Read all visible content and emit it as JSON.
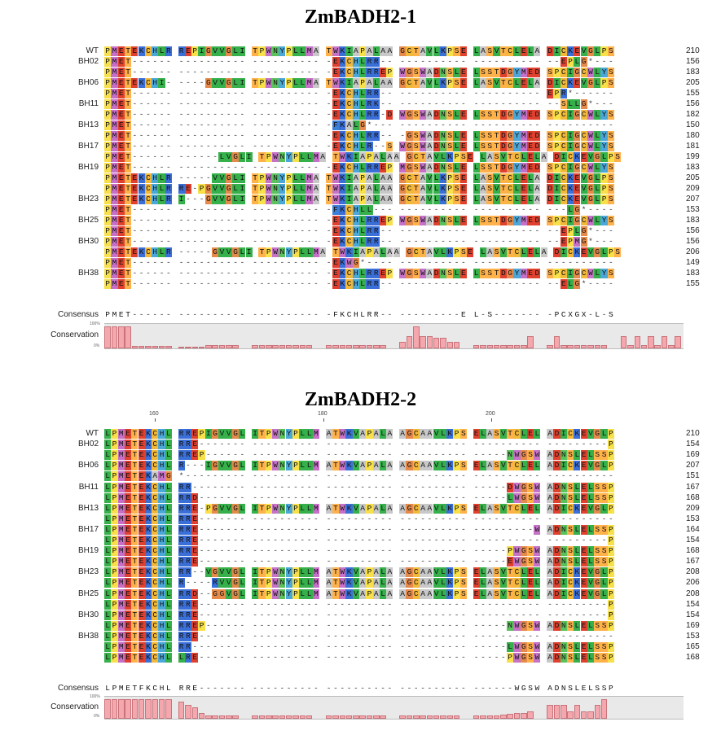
{
  "colors": {
    "A": "#c8c8c8",
    "R": "#3b6fd8",
    "N": "#5bc25b",
    "D": "#e0402e",
    "C": "#f2b83a",
    "Q": "#5bc25b",
    "E": "#e0402e",
    "G": "#e58a4a",
    "H": "#4aa7d8",
    "I": "#35b04a",
    "L": "#35b04a",
    "K": "#3b6fd8",
    "M": "#c56fc7",
    "F": "#3b7fd8",
    "P": "#f7e04a",
    "S": "#ffb14a",
    "T": "#ffb14a",
    "W": "#c572c7",
    "Y": "#4aa7d8",
    "V": "#35b04a",
    "X": "#ffffff",
    "*": "#ffffff",
    "-": "#ffffff"
  },
  "panels": [
    {
      "title": "ZmBADH2-1",
      "ruler": [],
      "rows": [
        {
          "label": "WT",
          "seq": "PMETEKCHLR REPIGVVGLI TPWNYPLLMA TWKIAPALAA GCTAVLKPSE LASVTCLELA DICKEVGLPS",
          "count": "210"
        },
        {
          "label": "BH02",
          "seq": "PMET------ ---------- ---------- -EKCHLRR-- ---------- ---------- --EPLG*---",
          "count": "156"
        },
        {
          "label": "",
          "seq": "PMET------ ---------- ---------- -EKCHLRREP WGSWADNSLE LSSTDGYMED SPCIGCWLYS",
          "count": "183"
        },
        {
          "label": "BH06",
          "seq": "PMETEKCHI- ----GVVGLI TPWNYPLLMA TWKIAPALAA GCTAVLKPSE LASVTCLELA DICKEVGLPS",
          "count": "205"
        },
        {
          "label": "",
          "seq": "PMET------ ---------- ---------- -EKCHLRR-- ---------- ---------- EPR*------",
          "count": "155"
        },
        {
          "label": "BH11",
          "seq": "PMET------ ---------- ---------- -EKCHLRK-- ---------- ---------- --SLLG*---",
          "count": "156"
        },
        {
          "label": "",
          "seq": "PMET------ ---------- ---------- -EKCHLRR-D WGSWADNSLE LSSTDGYMED SPCIGCWLYS",
          "count": "182"
        },
        {
          "label": "BH13",
          "seq": "PMET------ ---------- ---------- -FKALG*--- ---------- ---------- ----------",
          "count": "150"
        },
        {
          "label": "",
          "seq": "PMET------ ---------- ---------- -EKCHLRR-- -GSWADNSLE LSSTDGYMED SPCIGCWLYS",
          "count": "180"
        },
        {
          "label": "BH17",
          "seq": "PMET------ ---------- ---------- -EKCHLR--S WGSWADNSLE LSSTDGYMED SPCIGCWLYS",
          "count": "181"
        },
        {
          "label": "",
          "seq": "PMET------ ------LVGLI TPWNYPLLMA TWKIAPALAA GCTAVLKPSE LASVTCLELA DICKEVGLPS",
          "count": "199"
        },
        {
          "label": "BH19",
          "seq": "PMET------ ---------- ---------- -EKCHLRREP MGSWADNSLE LSSTDGYMED SPCIGCWLYS",
          "count": "183"
        },
        {
          "label": "",
          "seq": "PMETEKCHLR -----VVGLI TPWNYPLLMA TWKIAPALAA GCTAVLKPSE LASVTCLELA DICKEVGLPS",
          "count": "205"
        },
        {
          "label": "",
          "seq": "PMETEKCHLR RE-PGVVGLI TPWNYPLLMA TWKIAPALAA GCTAVLKPSE LASVTCLELA DICKEVGLPS",
          "count": "209"
        },
        {
          "label": "BH23",
          "seq": "PMETEKCHLR I---GVVGLI TPWNYPLLMA TWKIAPALAA GCTAVLKPSE LASVTCLELA DICKEVGLPS",
          "count": "207"
        },
        {
          "label": "",
          "seq": "PMET------ ---------- ---------- -FKCHLL--- ---------- ---------- ---LG*----",
          "count": "153"
        },
        {
          "label": "BH25",
          "seq": "PMET------ ---------- ---------- -EKCHLRREP WGSWADNSLE LSSTDGYMED SPCIGCWLYS",
          "count": "183"
        },
        {
          "label": "",
          "seq": "PMET------ ---------- ---------- -EKCHLRR-- ---------- ---------- --EPLG*---",
          "count": "156"
        },
        {
          "label": "BH30",
          "seq": "PMET------ ---------- ---------- -EKCHLRR-- ---------- ---------- --EPMG*---",
          "count": "156"
        },
        {
          "label": "",
          "seq": "PMETEKCHLR -----GVVGLI TPWNYPLLMA TWKIAPALAA GCTAVLKPSE LASVTCLELA DICKEVGLPS",
          "count": "206"
        },
        {
          "label": "",
          "seq": "PMET------ ---------- ---------- -EKWG*---- ---------- ---------- ----------",
          "count": "149"
        },
        {
          "label": "BH38",
          "seq": "PMET------ ---------- ---------- -EKCHLRREP WGSWADNSLE LSSTDGYMED SPCIGCWLYS",
          "count": "183"
        },
        {
          "label": "",
          "seq": "PMET------ ---------- ---------- -EKCHLRR-- ---------- ---------- --ELG*----",
          "count": "155"
        }
      ],
      "consensus_label": "Consensus",
      "consensus": "PMET------ ---------- ---------- -FKCHLRR-- ---------E L-S------- -PCXGX-L-S",
      "conservation_label": "Conservation",
      "pct_top": "100%",
      "pct_bottom": "0%",
      "conservation": [
        0.95,
        0.95,
        0.95,
        0.95,
        0.12,
        0.12,
        0.12,
        0.12,
        0.12,
        0.12,
        0,
        0.06,
        0.06,
        0.06,
        0.04,
        0.15,
        0.15,
        0.15,
        0.15,
        0.15,
        0,
        0.15,
        0.15,
        0.15,
        0.15,
        0.15,
        0.15,
        0.15,
        0.15,
        0.15,
        0.15,
        0,
        0.15,
        0.15,
        0.15,
        0.15,
        0.15,
        0.15,
        0.15,
        0.15,
        0.15,
        0.15,
        0,
        0.15,
        0.3,
        0.55,
        0.95,
        0.55,
        0.55,
        0.45,
        0.45,
        0.3,
        0.3,
        0,
        0.15,
        0.15,
        0.15,
        0.15,
        0.15,
        0.15,
        0.15,
        0.15,
        0.15,
        0.55,
        0,
        0.55,
        0.15,
        0.55,
        0.15,
        0.15,
        0.15,
        0.15,
        0.15,
        0.15,
        0.15,
        0,
        0.15,
        0.55,
        0.15,
        0.55,
        0.15,
        0.55,
        0.15,
        0.55,
        0.15,
        0.55
      ]
    },
    {
      "title": "ZmBADH2-2",
      "ruler": [
        "160",
        "180",
        "200"
      ],
      "rows": [
        {
          "label": "WT",
          "seq": "LPMETEKCHL RREPIGVVGL ITPWNYPLLM ATWKVAPALA AGCAAVLKPS ELASVTCLEL ADICKEVGLP",
          "count": "210"
        },
        {
          "label": "BH02",
          "seq": "LPMETEKCHL RRE------- ---------- ---------- ---------- ---------- ---------P",
          "count": "154"
        },
        {
          "label": "",
          "seq": "LPMETEKCHL RREP------ ---------- ---------- ---------- -----NWGSW ADNSLELSSP",
          "count": "169"
        },
        {
          "label": "BH06",
          "seq": "LPMETEKCHL R---IGVVGL ITPWNYPLLM ATWKVAPALA AGCAAVLKPS ELASVTCLEL ADICKEVGLP",
          "count": "207"
        },
        {
          "label": "",
          "seq": "LPMETEKAMG *--------- ---------- ---------- ---------- ---------- ----------",
          "count": "151"
        },
        {
          "label": "BH11",
          "seq": "LPMETEKCHL RR-------- ---------- ---------- ---------- -----DWGSW ADNSLELSSP",
          "count": "167"
        },
        {
          "label": "",
          "seq": "LPMETEKCHL RRD------- ---------- ---------- ---------- -----LWGSW ADNSLELSSP",
          "count": "168"
        },
        {
          "label": "BH13",
          "seq": "LPMETEKCHL RRE-PGVVGL ITPWNYPLLM ATWKVAPALA AGCAAVLKPS ELASVTCLEL ADICKEVGLP",
          "count": "209"
        },
        {
          "label": "",
          "seq": "LPMETEKCHL RRE------- ---------- ---------- ---------- ---------- ----------",
          "count": "153"
        },
        {
          "label": "BH17",
          "seq": "LPMETEKCHL RRE------- ---------- ---------- ---------- ---------W ADNSLELSSP",
          "count": "164"
        },
        {
          "label": "",
          "seq": "LPMETEKCHL RRE------- ---------- ---------- ---------- ---------- ---------P",
          "count": "154"
        },
        {
          "label": "BH19",
          "seq": "LPMETEKCHL RRE------- ---------- ---------- ---------- -----PWGSW ADNSLELSSP",
          "count": "168"
        },
        {
          "label": "",
          "seq": "LPMETEKCHL RRE------- ---------- ---------- ---------- -----EWGSW ADNSLELSSP",
          "count": "167"
        },
        {
          "label": "BH23",
          "seq": "LPMETEKCHL RR--VGVVGL ITPWNYPLLM ATWKVAPALA AGCAAVLKPS ELASVTCLEL ADICKEVGLP",
          "count": "208"
        },
        {
          "label": "",
          "seq": "LPMETEKCHL R----RVVGL ITPWNYPLLM ATWKVAPALA AGCAAVLKPS ELASVTCLEL ADICKEVGLP",
          "count": "206"
        },
        {
          "label": "BH25",
          "seq": "LPMETEKCHL RRD--GGVGL ITPWNYPLLM ATWKVAPALA AGCAAVLKPS ELASVTCLEL ADICKEVGLP",
          "count": "208"
        },
        {
          "label": "",
          "seq": "LPMETEKCHL RRE------- ---------- ---------- ---------- ---------- ---------P",
          "count": "154"
        },
        {
          "label": "BH30",
          "seq": "LPMETEKCHL RRE------- ---------- ---------- ---------- ---------- ---------P",
          "count": "154"
        },
        {
          "label": "",
          "seq": "LPMETEKCHL RREP------ ---------- ---------- ---------- -----NWGSW ADNSLELSSP",
          "count": "169"
        },
        {
          "label": "BH38",
          "seq": "LPMETEKCHL RRE------- ---------- ---------- ---------- ---------- ----------",
          "count": "153"
        },
        {
          "label": "",
          "seq": "LPMETEKCHL RR-------- ---------- ---------- ---------- -----LWGSW ADNSLELSSP",
          "count": "165"
        },
        {
          "label": "",
          "seq": "LPMETEKCHL LRE------- ---------- ---------- ---------- -----PWGSW ADNSLELSSP",
          "count": "168"
        }
      ],
      "consensus_label": "Consensus",
      "consensus": "LPMETFKCHL RRE------- ---------- ---------- ---------- ------WGSW ADNSLELSSP",
      "conservation_label": "Conservation",
      "pct_top": "100%",
      "pct_bottom": "0%",
      "conservation": [
        0.95,
        0.95,
        0.95,
        0.95,
        0.95,
        0.95,
        0.95,
        0.95,
        0.95,
        0.95,
        0,
        0.85,
        0.7,
        0.55,
        0.3,
        0.15,
        0.15,
        0.15,
        0.15,
        0.15,
        0,
        0.15,
        0.15,
        0.15,
        0.15,
        0.15,
        0.15,
        0.15,
        0.15,
        0.15,
        0.15,
        0,
        0.15,
        0.15,
        0.15,
        0.15,
        0.15,
        0.15,
        0.15,
        0.15,
        0.15,
        0.15,
        0,
        0.15,
        0.15,
        0.15,
        0.15,
        0.15,
        0.15,
        0.15,
        0.15,
        0.15,
        0.15,
        0,
        0.15,
        0.15,
        0.15,
        0.15,
        0.15,
        0.2,
        0.25,
        0.3,
        0.3,
        0.35,
        0,
        0.7,
        0.7,
        0.7,
        0.7,
        0.35,
        0.7,
        0.35,
        0.35,
        0.7,
        0.95
      ]
    }
  ]
}
